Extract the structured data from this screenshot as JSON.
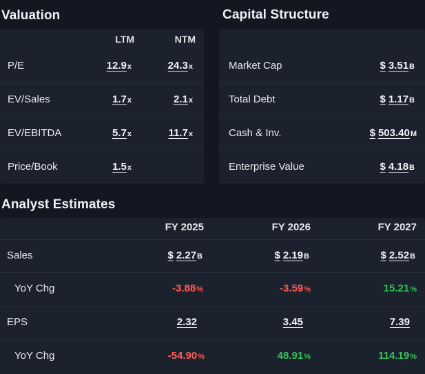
{
  "valuation": {
    "title": "Valuation",
    "columns": [
      "LTM",
      "NTM"
    ],
    "rows": [
      {
        "label": "P/E",
        "ltm": "12.9",
        "ltm_sfx": "x",
        "ntm": "24.3",
        "ntm_sfx": "x"
      },
      {
        "label": "EV/Sales",
        "ltm": "1.7",
        "ltm_sfx": "x",
        "ntm": "2.1",
        "ntm_sfx": "x"
      },
      {
        "label": "EV/EBITDA",
        "ltm": "5.7",
        "ltm_sfx": "x",
        "ntm": "11.7",
        "ntm_sfx": "x"
      },
      {
        "label": "Price/Book",
        "ltm": "1.5",
        "ltm_sfx": "x",
        "ntm": "",
        "ntm_sfx": ""
      }
    ]
  },
  "capital_structure": {
    "title": "Capital Structure",
    "currency": "$",
    "rows": [
      {
        "label": "Market Cap",
        "value": "3.51",
        "unit": "B"
      },
      {
        "label": "Total Debt",
        "value": "1.17",
        "unit": "B"
      },
      {
        "label": "Cash & Inv.",
        "value": "503.40",
        "unit": "M"
      },
      {
        "label": "Enterprise Value",
        "value": "4.18",
        "unit": "B"
      }
    ]
  },
  "analyst_estimates": {
    "title": "Analyst Estimates",
    "columns": [
      "FY 2025",
      "FY 2026",
      "FY 2027"
    ],
    "currency": "$",
    "percent": "%",
    "sales": {
      "label": "Sales",
      "values": [
        "2.27",
        "2.19",
        "2.52"
      ],
      "unit": "B"
    },
    "sales_yoy": {
      "label": "YoY Chg",
      "values": [
        "-3.88",
        "-3.59",
        "15.21"
      ]
    },
    "eps": {
      "label": "EPS",
      "values": [
        "2.32",
        "3.45",
        "7.39"
      ]
    },
    "eps_yoy": {
      "label": "YoY Chg",
      "values": [
        "-54.90",
        "48.91",
        "114.19"
      ]
    }
  },
  "colors": {
    "background": "#121722",
    "panel": "#1b212d",
    "negative": "#ff5c57",
    "positive": "#35c25a"
  }
}
